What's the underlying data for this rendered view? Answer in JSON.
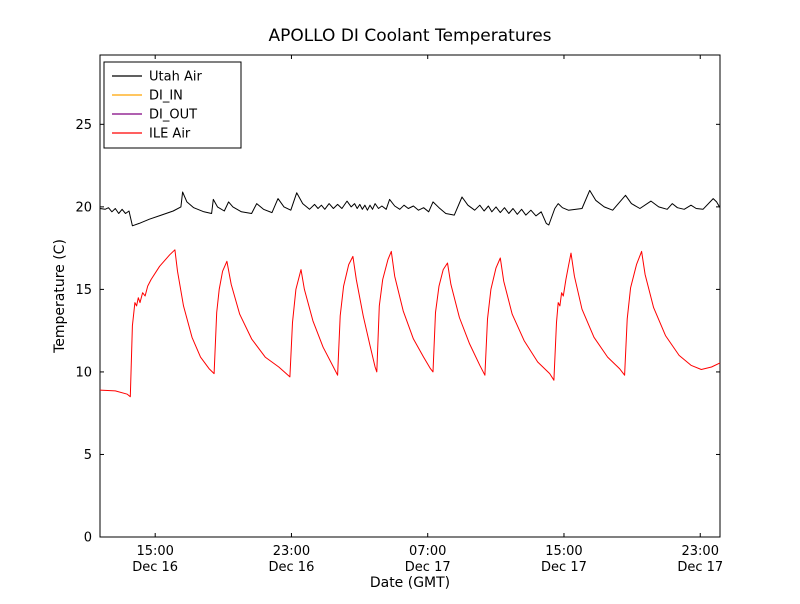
{
  "figure": {
    "background": "#ffffff",
    "border_color": "#000000"
  },
  "chart_data": {
    "type": "line",
    "title": "APOLLO DI Coolant Temperatures",
    "xlabel": "Date (GMT)",
    "ylabel": "Temperature (C)",
    "xlim": [
      0,
      36.4
    ],
    "ylim": [
      0,
      29.2
    ],
    "grid": false,
    "yticks": [
      0,
      5,
      10,
      15,
      20,
      25
    ],
    "xticks": [
      {
        "t": 3.24,
        "time": "15:00",
        "date": "Dec 16"
      },
      {
        "t": 11.24,
        "time": "23:00",
        "date": "Dec 16"
      },
      {
        "t": 19.24,
        "time": "07:00",
        "date": "Dec 17"
      },
      {
        "t": 27.24,
        "time": "15:00",
        "date": "Dec 17"
      },
      {
        "t": 35.24,
        "time": "23:00",
        "date": "Dec 17"
      }
    ],
    "legend": {
      "position": "upper-left",
      "entries": [
        {
          "label": "Utah Air",
          "color": "#000000"
        },
        {
          "label": "DI_IN",
          "color": "#ffa500"
        },
        {
          "label": "DI_OUT",
          "color": "#800080"
        },
        {
          "label": "ILE Air",
          "color": "#ff0000"
        }
      ]
    },
    "series": [
      {
        "name": "Utah Air",
        "color": "#000000",
        "points": [
          [
            0.0,
            19.9
          ],
          [
            0.3,
            19.85
          ],
          [
            0.5,
            19.95
          ],
          [
            0.7,
            19.7
          ],
          [
            0.9,
            19.9
          ],
          [
            1.1,
            19.6
          ],
          [
            1.3,
            19.85
          ],
          [
            1.5,
            19.6
          ],
          [
            1.7,
            19.75
          ],
          [
            1.9,
            18.85
          ],
          [
            2.3,
            19.0
          ],
          [
            2.9,
            19.25
          ],
          [
            3.6,
            19.5
          ],
          [
            4.3,
            19.75
          ],
          [
            4.75,
            20.0
          ],
          [
            4.85,
            20.9
          ],
          [
            5.1,
            20.3
          ],
          [
            5.5,
            19.95
          ],
          [
            6.1,
            19.7
          ],
          [
            6.55,
            19.6
          ],
          [
            6.65,
            20.45
          ],
          [
            6.9,
            20.0
          ],
          [
            7.3,
            19.75
          ],
          [
            7.55,
            20.3
          ],
          [
            7.8,
            20.0
          ],
          [
            8.3,
            19.7
          ],
          [
            8.9,
            19.6
          ],
          [
            9.2,
            20.2
          ],
          [
            9.6,
            19.85
          ],
          [
            10.1,
            19.65
          ],
          [
            10.45,
            20.5
          ],
          [
            10.8,
            20.0
          ],
          [
            11.2,
            19.8
          ],
          [
            11.55,
            20.85
          ],
          [
            11.9,
            20.2
          ],
          [
            12.3,
            19.85
          ],
          [
            12.6,
            20.15
          ],
          [
            12.8,
            19.9
          ],
          [
            13.0,
            20.1
          ],
          [
            13.2,
            19.85
          ],
          [
            13.45,
            20.2
          ],
          [
            13.7,
            19.9
          ],
          [
            13.95,
            20.15
          ],
          [
            14.2,
            19.9
          ],
          [
            14.5,
            20.35
          ],
          [
            14.75,
            20.0
          ],
          [
            14.95,
            20.2
          ],
          [
            15.1,
            19.9
          ],
          [
            15.25,
            20.15
          ],
          [
            15.4,
            19.85
          ],
          [
            15.55,
            20.1
          ],
          [
            15.7,
            19.8
          ],
          [
            15.85,
            20.1
          ],
          [
            16.0,
            19.85
          ],
          [
            16.15,
            20.2
          ],
          [
            16.35,
            19.9
          ],
          [
            16.55,
            20.05
          ],
          [
            16.8,
            19.85
          ],
          [
            17.0,
            20.45
          ],
          [
            17.3,
            20.05
          ],
          [
            17.6,
            19.85
          ],
          [
            17.85,
            20.1
          ],
          [
            18.1,
            19.9
          ],
          [
            18.4,
            20.05
          ],
          [
            18.7,
            19.8
          ],
          [
            19.0,
            19.95
          ],
          [
            19.3,
            19.7
          ],
          [
            19.55,
            20.3
          ],
          [
            19.9,
            19.95
          ],
          [
            20.3,
            19.6
          ],
          [
            20.8,
            19.5
          ],
          [
            21.25,
            20.6
          ],
          [
            21.6,
            20.1
          ],
          [
            22.0,
            19.8
          ],
          [
            22.3,
            20.1
          ],
          [
            22.55,
            19.75
          ],
          [
            22.8,
            20.05
          ],
          [
            23.0,
            19.7
          ],
          [
            23.25,
            20.0
          ],
          [
            23.5,
            19.65
          ],
          [
            23.75,
            19.95
          ],
          [
            24.0,
            19.6
          ],
          [
            24.25,
            19.9
          ],
          [
            24.5,
            19.55
          ],
          [
            24.75,
            19.85
          ],
          [
            25.0,
            19.5
          ],
          [
            25.3,
            19.8
          ],
          [
            25.6,
            19.45
          ],
          [
            25.9,
            19.7
          ],
          [
            26.2,
            19.0
          ],
          [
            26.35,
            18.9
          ],
          [
            26.7,
            19.9
          ],
          [
            26.9,
            20.2
          ],
          [
            27.15,
            19.95
          ],
          [
            27.5,
            19.8
          ],
          [
            28.3,
            19.9
          ],
          [
            28.75,
            21.0
          ],
          [
            29.1,
            20.4
          ],
          [
            29.6,
            20.0
          ],
          [
            30.1,
            19.8
          ],
          [
            30.85,
            20.7
          ],
          [
            31.2,
            20.2
          ],
          [
            31.7,
            19.9
          ],
          [
            32.35,
            20.35
          ],
          [
            32.8,
            20.0
          ],
          [
            33.3,
            19.85
          ],
          [
            33.6,
            20.2
          ],
          [
            33.9,
            19.95
          ],
          [
            34.3,
            19.85
          ],
          [
            34.7,
            20.1
          ],
          [
            35.0,
            19.9
          ],
          [
            35.4,
            19.85
          ],
          [
            36.0,
            20.5
          ],
          [
            36.2,
            20.3
          ],
          [
            36.4,
            19.95
          ]
        ]
      },
      {
        "name": "DI_IN",
        "color": "#ffa500",
        "points": []
      },
      {
        "name": "DI_OUT",
        "color": "#800080",
        "points": []
      },
      {
        "name": "ILE Air",
        "color": "#ff0000",
        "points": [
          [
            0.0,
            8.9
          ],
          [
            0.9,
            8.85
          ],
          [
            1.6,
            8.65
          ],
          [
            1.78,
            8.5
          ],
          [
            1.9,
            12.8
          ],
          [
            2.05,
            14.2
          ],
          [
            2.15,
            14.0
          ],
          [
            2.25,
            14.5
          ],
          [
            2.35,
            14.2
          ],
          [
            2.5,
            14.8
          ],
          [
            2.65,
            14.6
          ],
          [
            2.8,
            15.2
          ],
          [
            3.0,
            15.6
          ],
          [
            3.5,
            16.4
          ],
          [
            4.1,
            17.1
          ],
          [
            4.4,
            17.4
          ],
          [
            4.55,
            16.1
          ],
          [
            4.9,
            14.0
          ],
          [
            5.4,
            12.1
          ],
          [
            5.9,
            10.9
          ],
          [
            6.4,
            10.2
          ],
          [
            6.7,
            9.9
          ],
          [
            6.85,
            13.6
          ],
          [
            7.0,
            15.0
          ],
          [
            7.2,
            16.1
          ],
          [
            7.45,
            16.7
          ],
          [
            7.7,
            15.3
          ],
          [
            8.2,
            13.5
          ],
          [
            8.9,
            12.0
          ],
          [
            9.7,
            10.9
          ],
          [
            10.5,
            10.3
          ],
          [
            11.15,
            9.7
          ],
          [
            11.3,
            13.0
          ],
          [
            11.5,
            15.0
          ],
          [
            11.8,
            16.2
          ],
          [
            12.0,
            15.0
          ],
          [
            12.5,
            13.1
          ],
          [
            13.1,
            11.5
          ],
          [
            13.7,
            10.3
          ],
          [
            13.95,
            9.8
          ],
          [
            14.1,
            13.4
          ],
          [
            14.3,
            15.2
          ],
          [
            14.6,
            16.5
          ],
          [
            14.85,
            17.0
          ],
          [
            15.05,
            15.6
          ],
          [
            15.45,
            13.4
          ],
          [
            15.85,
            11.6
          ],
          [
            16.15,
            10.3
          ],
          [
            16.25,
            10.0
          ],
          [
            16.4,
            14.0
          ],
          [
            16.6,
            15.6
          ],
          [
            16.9,
            16.8
          ],
          [
            17.1,
            17.3
          ],
          [
            17.3,
            15.8
          ],
          [
            17.8,
            13.7
          ],
          [
            18.4,
            12.0
          ],
          [
            19.0,
            10.9
          ],
          [
            19.4,
            10.2
          ],
          [
            19.55,
            10.0
          ],
          [
            19.7,
            13.6
          ],
          [
            19.9,
            15.2
          ],
          [
            20.15,
            16.2
          ],
          [
            20.4,
            16.6
          ],
          [
            20.6,
            15.3
          ],
          [
            21.1,
            13.3
          ],
          [
            21.7,
            11.7
          ],
          [
            22.3,
            10.4
          ],
          [
            22.6,
            9.8
          ],
          [
            22.75,
            13.2
          ],
          [
            22.95,
            15.0
          ],
          [
            23.25,
            16.3
          ],
          [
            23.5,
            16.9
          ],
          [
            23.7,
            15.5
          ],
          [
            24.2,
            13.5
          ],
          [
            24.9,
            11.9
          ],
          [
            25.7,
            10.6
          ],
          [
            26.4,
            9.9
          ],
          [
            26.65,
            9.5
          ],
          [
            26.8,
            13.0
          ],
          [
            26.9,
            14.2
          ],
          [
            27.0,
            14.0
          ],
          [
            27.1,
            14.8
          ],
          [
            27.2,
            14.6
          ],
          [
            27.35,
            15.6
          ],
          [
            27.5,
            16.4
          ],
          [
            27.65,
            17.2
          ],
          [
            27.85,
            15.8
          ],
          [
            28.3,
            13.8
          ],
          [
            29.0,
            12.1
          ],
          [
            29.8,
            10.9
          ],
          [
            30.5,
            10.2
          ],
          [
            30.8,
            9.8
          ],
          [
            30.95,
            13.2
          ],
          [
            31.15,
            15.1
          ],
          [
            31.5,
            16.5
          ],
          [
            31.8,
            17.3
          ],
          [
            32.0,
            15.9
          ],
          [
            32.5,
            13.9
          ],
          [
            33.2,
            12.2
          ],
          [
            34.0,
            11.0
          ],
          [
            34.7,
            10.4
          ],
          [
            35.3,
            10.15
          ],
          [
            35.9,
            10.3
          ],
          [
            36.4,
            10.55
          ]
        ]
      }
    ]
  }
}
